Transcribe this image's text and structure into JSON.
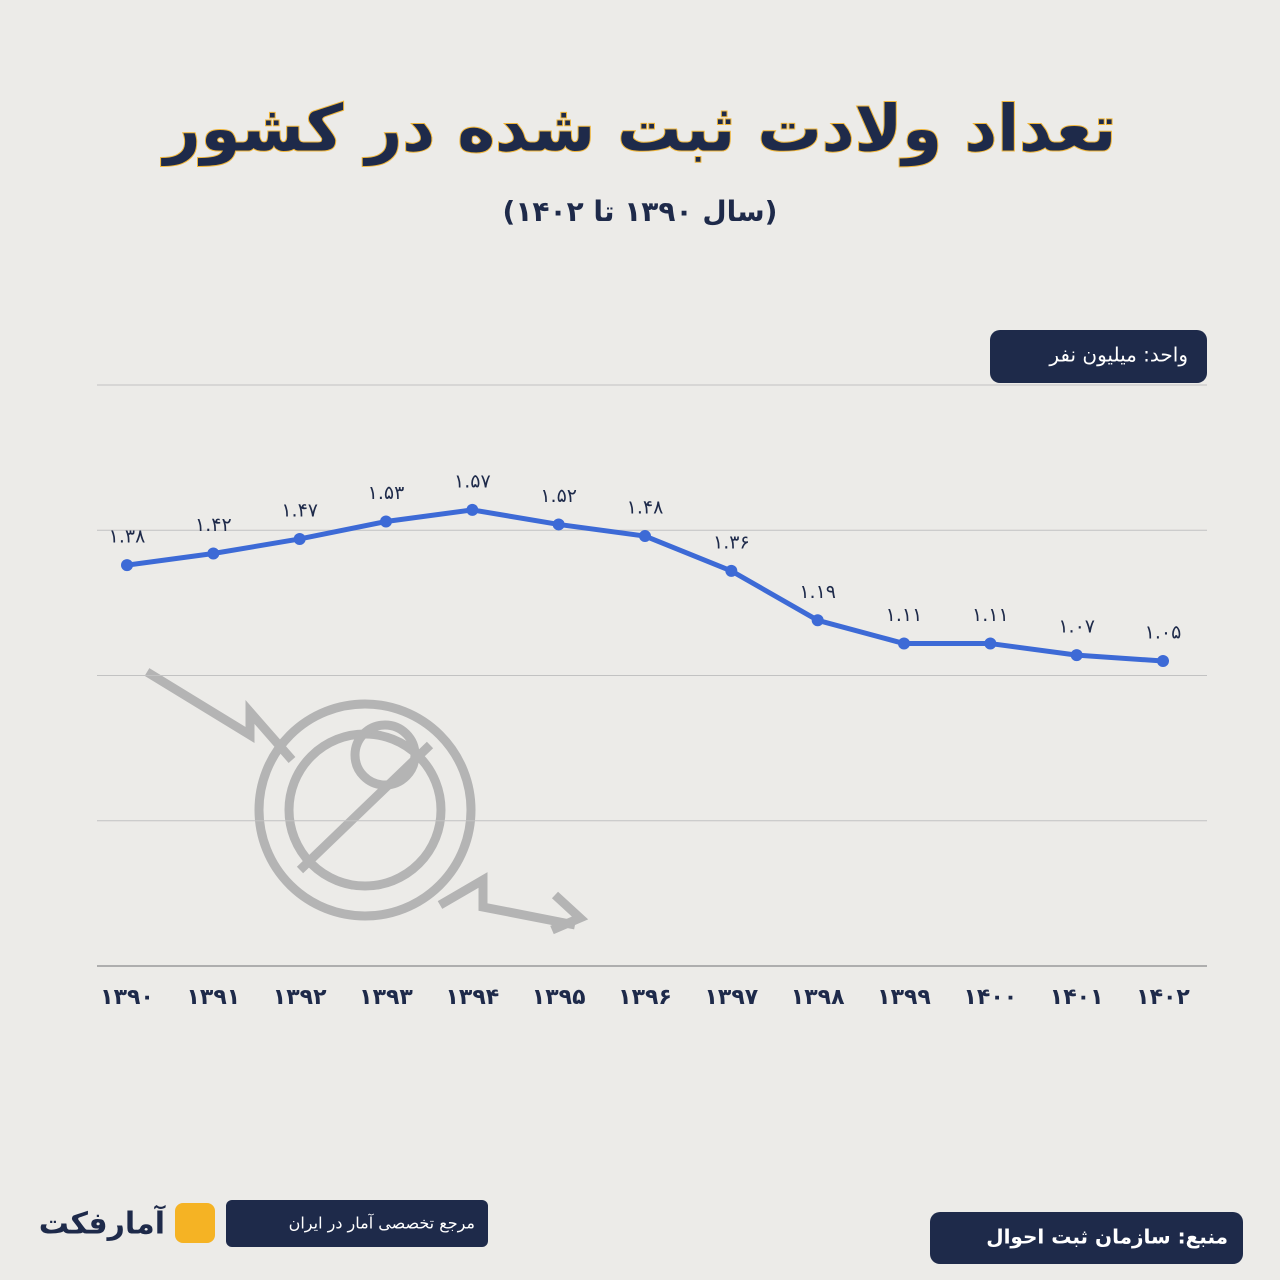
{
  "chart_data": {
    "type": "line",
    "title": "تعداد ولادت ثبت شده در کشور",
    "subtitle": "(سال ۱۳۹۰ تا ۱۴۰۲)",
    "unit_label": "واحد: میلیون نفر",
    "categories": [
      "۱۳۹۰",
      "۱۳۹۱",
      "۱۳۹۲",
      "۱۳۹۳",
      "۱۳۹۴",
      "۱۳۹۵",
      "۱۳۹۶",
      "۱۳۹۷",
      "۱۳۹۸",
      "۱۳۹۹",
      "۱۴۰۰",
      "۱۴۰۱",
      "۱۴۰۲"
    ],
    "values": [
      1.38,
      1.42,
      1.47,
      1.53,
      1.57,
      1.52,
      1.48,
      1.36,
      1.19,
      1.11,
      1.11,
      1.07,
      1.05
    ],
    "value_labels": [
      "۱.۳۸",
      "۱.۴۲",
      "۱.۴۷",
      "۱.۵۳",
      "۱.۵۷",
      "۱.۵۲",
      "۱.۴۸",
      "۱.۳۶",
      "۱.۱۹",
      "۱.۱۱",
      "۱.۱۱",
      "۱.۰۷",
      "۱.۰۵"
    ],
    "color": "#3d6ad6",
    "ylim": [
      0,
      2
    ],
    "yticks": [
      0,
      0.5,
      1,
      1.5,
      2
    ],
    "grid": true,
    "source": "منبع: سازمان ثبت احوال",
    "brand_tagline": "مرجع تخصصی آمار در ایران",
    "brand_name": "آمارفکت"
  }
}
